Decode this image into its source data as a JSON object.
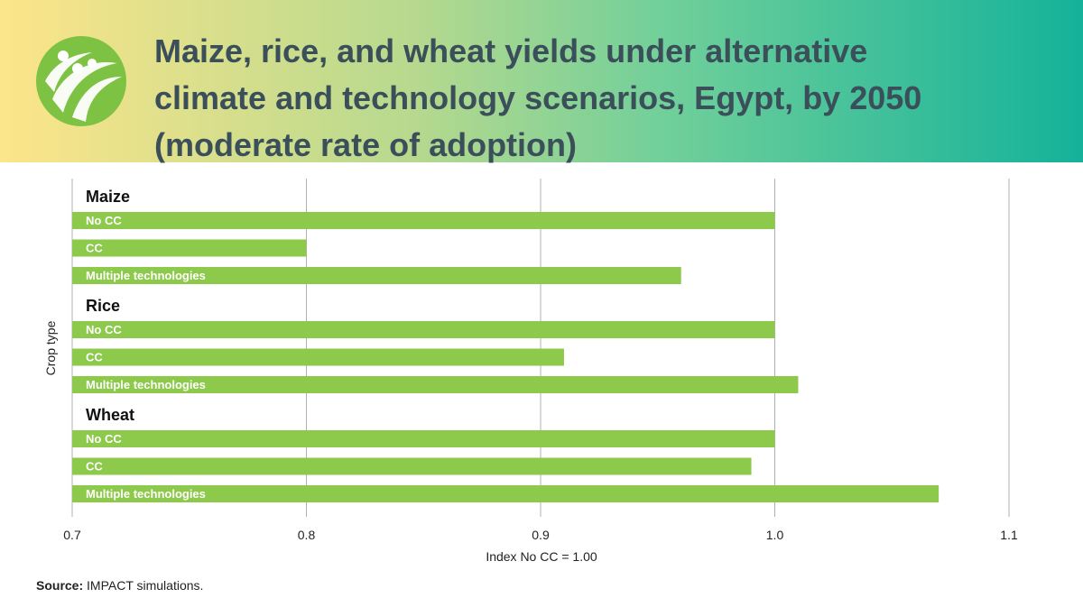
{
  "title_lines": [
    "Maize, rice, and wheat yields under alternative",
    "climate and technology scenarios, Egypt, by 2050",
    "(moderate rate of adoption)"
  ],
  "source": {
    "label": "Source:",
    "text": "IMPACT simulations."
  },
  "colors": {
    "bar": "#8dc94b",
    "grid": "#b0b0b0",
    "title": "#3b4f5a",
    "logo_circle": "#7ec243"
  },
  "logo_icon": "people-leaves-logo",
  "chart_data": {
    "type": "bar",
    "orientation": "horizontal",
    "title": "Maize, rice, and wheat yields under alternative climate and technology scenarios, Egypt, by 2050 (moderate rate of adoption)",
    "xlabel": "Index No CC = 1.00",
    "ylabel": "Crop type",
    "xlim": [
      0.7,
      1.1
    ],
    "xticks": [
      "0.7",
      "0.8",
      "0.9",
      "1.0",
      "1.1"
    ],
    "grid": true,
    "groups": [
      {
        "name": "Maize",
        "bars": [
          {
            "label": "No CC",
            "value": 1.0
          },
          {
            "label": "CC",
            "value": 0.8
          },
          {
            "label": "Multiple technologies",
            "value": 0.96
          }
        ]
      },
      {
        "name": "Rice",
        "bars": [
          {
            "label": "No CC",
            "value": 1.0
          },
          {
            "label": "CC",
            "value": 0.91
          },
          {
            "label": "Multiple technologies",
            "value": 1.01
          }
        ]
      },
      {
        "name": "Wheat",
        "bars": [
          {
            "label": "No CC",
            "value": 1.0
          },
          {
            "label": "CC",
            "value": 0.99
          },
          {
            "label": "Multiple technologies",
            "value": 1.07
          }
        ]
      }
    ]
  }
}
